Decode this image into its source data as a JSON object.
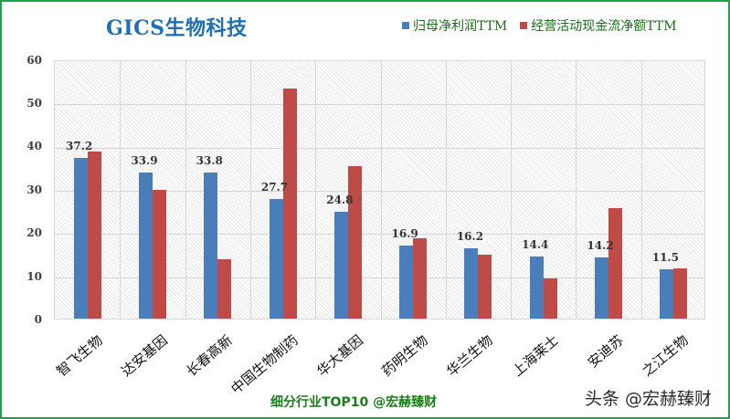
{
  "chart_data": {
    "type": "bar",
    "title": "GICS生物科技",
    "xlabel": "",
    "ylabel": "",
    "ylim": [
      0,
      60
    ],
    "yticks": [
      0,
      10,
      20,
      30,
      40,
      50,
      60
    ],
    "grid": true,
    "legend_position": "top-right",
    "categories": [
      "智飞生物",
      "达安基因",
      "长春高新",
      "中国生物制药",
      "华大基因",
      "药明生物",
      "华兰生物",
      "上海莱士",
      "安迪苏",
      "之江生物"
    ],
    "series": [
      {
        "name": "归母净利润TTM",
        "color": "#4a7ebb",
        "values": [
          37.2,
          33.9,
          33.8,
          27.7,
          24.8,
          16.9,
          16.2,
          14.4,
          14.2,
          11.5
        ],
        "labels_shown": true
      },
      {
        "name": "经营活动现金流净额TTM",
        "color": "#be4b48",
        "values": [
          38.7,
          29.8,
          13.7,
          53.3,
          35.3,
          18.6,
          14.8,
          9.3,
          25.6,
          11.6
        ],
        "labels_shown": false
      }
    ],
    "annotations": [
      "细分行业TOP10 @宏赫臻财"
    ]
  },
  "header": {
    "title": "GICS生物科技"
  },
  "legend": {
    "items": [
      {
        "label": "归母净利润TTM",
        "color": "#4a7ebb"
      },
      {
        "label": "经营活动现金流净额TTM",
        "color": "#be4b48"
      }
    ]
  },
  "axis": {
    "yticks": [
      "60",
      "50",
      "40",
      "30",
      "20",
      "10",
      "0"
    ]
  },
  "bar_labels": [
    "37.2",
    "33.9",
    "33.8",
    "27.7",
    "24.8",
    "16.9",
    "16.2",
    "14.4",
    "14.2",
    "11.5"
  ],
  "categories": [
    "智飞生物",
    "达安基因",
    "长春高新",
    "中国生物制药",
    "华大基因",
    "药明生物",
    "华兰生物",
    "上海莱士",
    "安迪苏",
    "之江生物"
  ],
  "footer": {
    "caption": "细分行业TOP10 @宏赫臻财"
  },
  "watermark": {
    "text": "头条 @宏赫臻财"
  }
}
